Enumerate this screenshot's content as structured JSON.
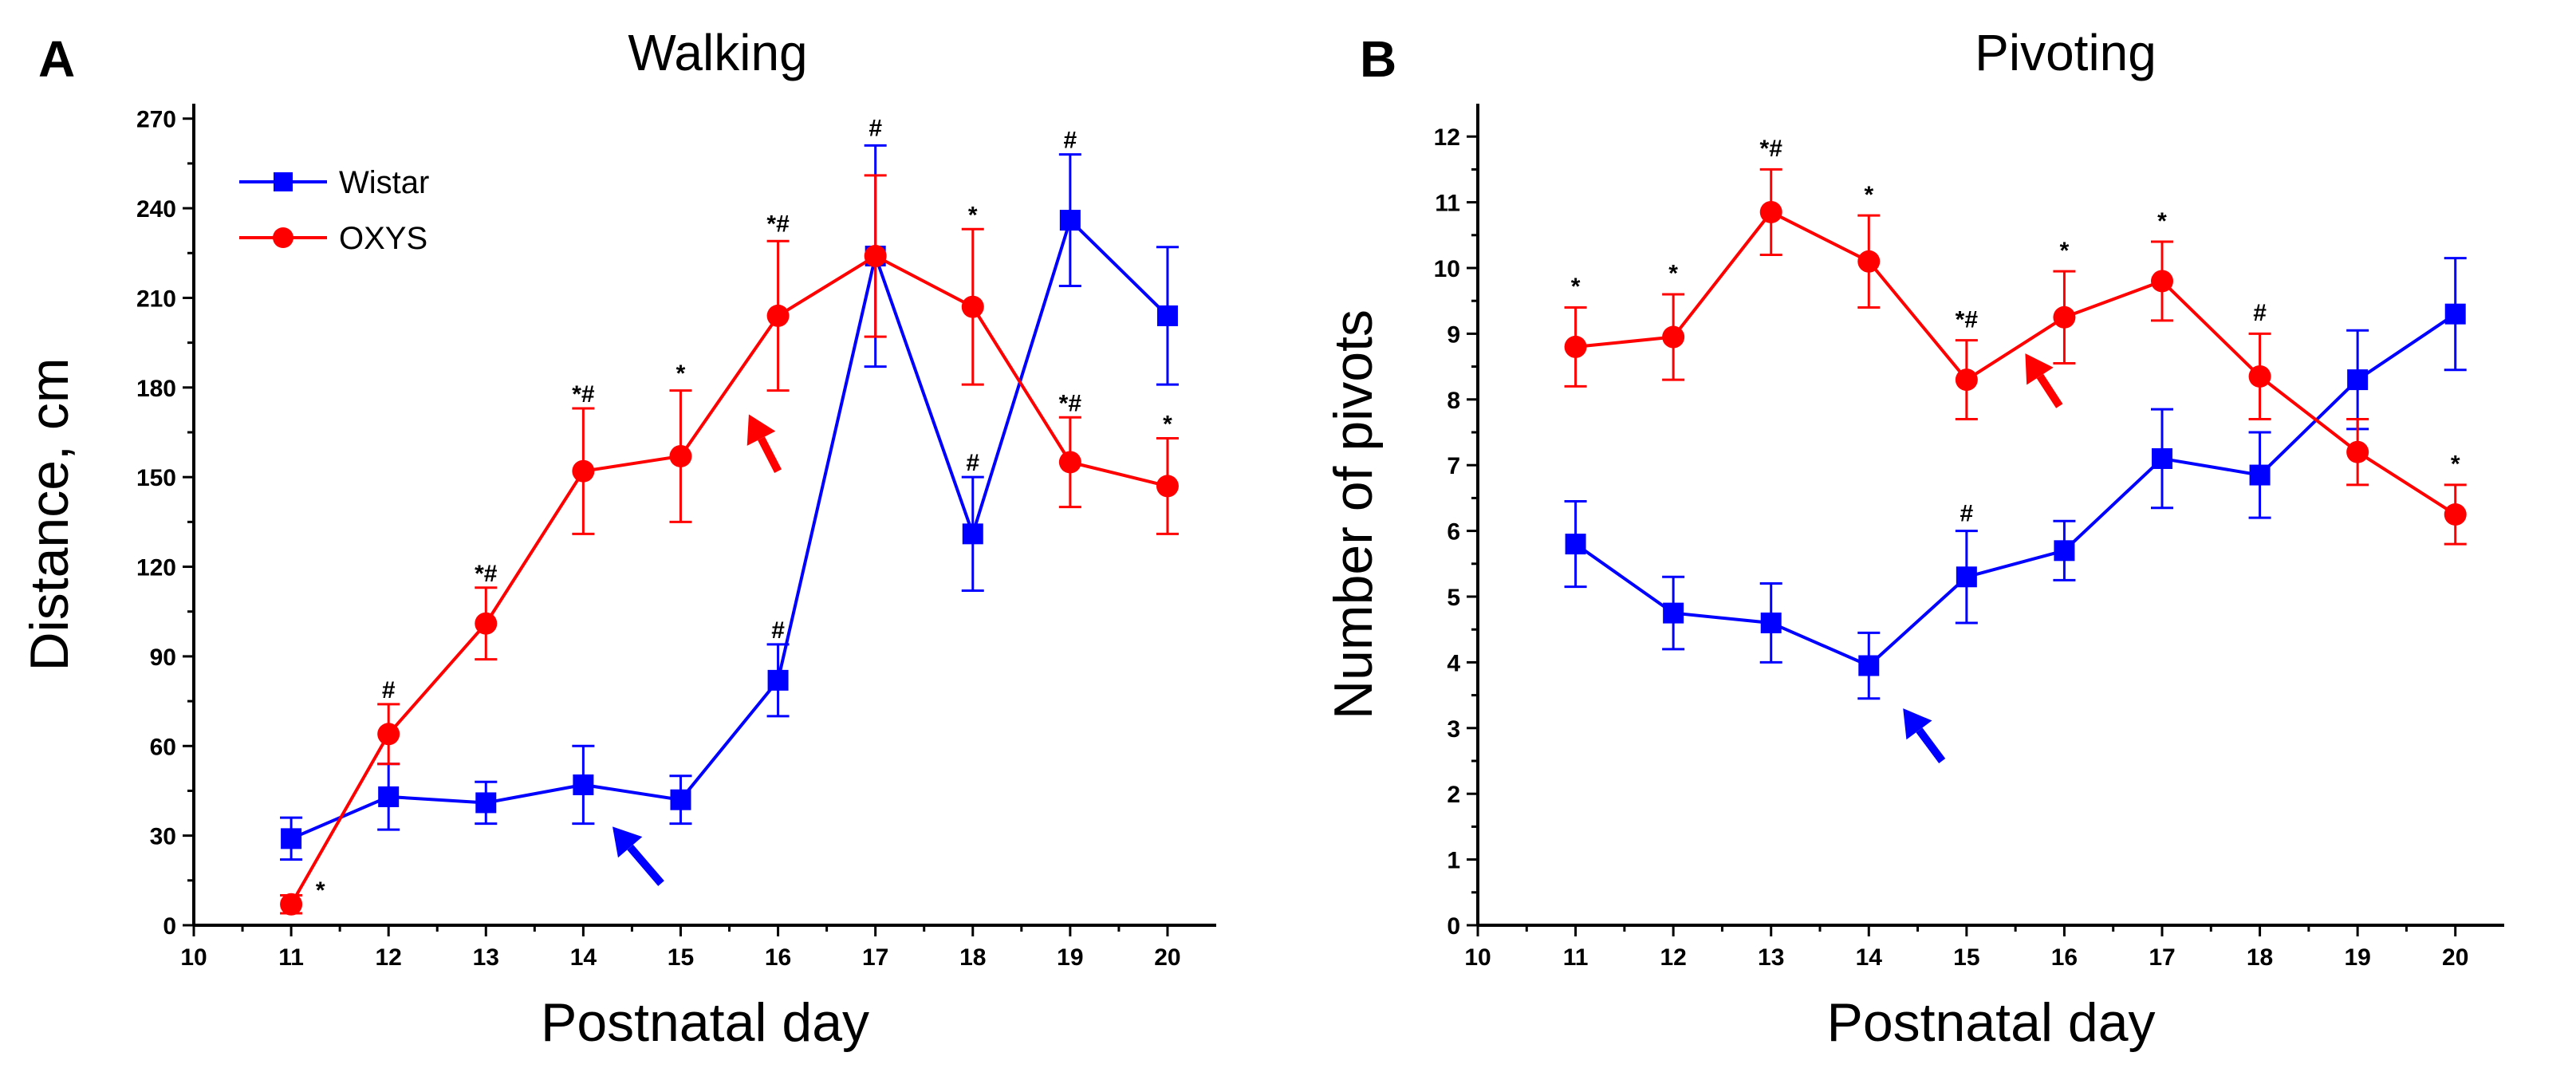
{
  "chart_data": [
    {
      "type": "line",
      "panel_letter": "A",
      "title": "Walking",
      "xlabel": "Postnatal day",
      "ylabel": "Distance, cm",
      "xlim": [
        10,
        20.5
      ],
      "ylim": [
        0,
        275
      ],
      "xticks": [
        10,
        11,
        12,
        13,
        14,
        15,
        16,
        17,
        18,
        19,
        20
      ],
      "yticks": [
        0,
        30,
        60,
        90,
        120,
        150,
        180,
        210,
        240,
        270
      ],
      "legend": {
        "position": "top-left",
        "entries": [
          "Wistar",
          "OXYS"
        ]
      },
      "series": [
        {
          "name": "Wistar",
          "color": "#0000ff",
          "marker": "square",
          "x": [
            11,
            12,
            13,
            14,
            15,
            16,
            17,
            18,
            19,
            20
          ],
          "y": [
            29,
            43,
            41,
            47,
            42,
            82,
            224,
            131,
            236,
            204
          ],
          "error": [
            7,
            11,
            7,
            13,
            8,
            12,
            37,
            19,
            22,
            23
          ]
        },
        {
          "name": "OXYS",
          "color": "#ff0000",
          "marker": "circle",
          "x": [
            11,
            12,
            13,
            14,
            15,
            16,
            17,
            18,
            19,
            20
          ],
          "y": [
            7,
            64,
            101,
            152,
            157,
            204,
            224,
            207,
            155,
            147
          ],
          "error": [
            3,
            10,
            12,
            21,
            22,
            25,
            27,
            26,
            15,
            16
          ]
        }
      ],
      "annotations": [
        {
          "x": 11.3,
          "y": 7,
          "text": "*",
          "dx": 0
        },
        {
          "x": 12,
          "y": 74,
          "text": "#"
        },
        {
          "x": 13,
          "y": 113,
          "text": "*#"
        },
        {
          "x": 14,
          "y": 173,
          "text": "*#"
        },
        {
          "x": 15,
          "y": 180,
          "text": "*"
        },
        {
          "x": 16,
          "y": 230,
          "text": "*#"
        },
        {
          "x": 17,
          "y": 262,
          "text": "#"
        },
        {
          "x": 18,
          "y": 233,
          "text": "*"
        },
        {
          "x": 18,
          "y": 150,
          "text": "#"
        },
        {
          "x": 16,
          "y": 94,
          "text": "#"
        },
        {
          "x": 19,
          "y": 258,
          "text": "#"
        },
        {
          "x": 19,
          "y": 170,
          "text": "*#"
        },
        {
          "x": 20,
          "y": 163,
          "text": "*"
        }
      ],
      "arrows": [
        {
          "color": "#0000ff",
          "from": [
            14.8,
            14
          ],
          "to": [
            14.3,
            33
          ]
        },
        {
          "color": "#ff0000",
          "from": [
            16.0,
            152
          ],
          "to": [
            15.7,
            171
          ]
        }
      ]
    },
    {
      "type": "line",
      "panel_letter": "B",
      "title": "Pivoting",
      "xlabel": "Postnatal day",
      "ylabel": "Number of pivots",
      "xlim": [
        10,
        20.5
      ],
      "ylim": [
        0,
        12.5
      ],
      "xticks": [
        10,
        11,
        12,
        13,
        14,
        15,
        16,
        17,
        18,
        19,
        20
      ],
      "yticks": [
        0,
        1,
        2,
        3,
        4,
        5,
        6,
        7,
        8,
        9,
        10,
        11,
        12
      ],
      "series": [
        {
          "name": "Wistar",
          "color": "#0000ff",
          "marker": "square",
          "x": [
            11,
            12,
            13,
            14,
            15,
            16,
            17,
            18,
            19,
            20
          ],
          "y": [
            5.8,
            4.75,
            4.6,
            3.95,
            5.3,
            5.7,
            7.1,
            6.85,
            8.3,
            9.3
          ],
          "error": [
            0.65,
            0.55,
            0.6,
            0.5,
            0.7,
            0.45,
            0.75,
            0.65,
            0.75,
            0.85
          ]
        },
        {
          "name": "OXYS",
          "color": "#ff0000",
          "marker": "circle",
          "x": [
            11,
            12,
            13,
            14,
            15,
            16,
            17,
            18,
            19,
            20
          ],
          "y": [
            8.8,
            8.95,
            10.85,
            10.1,
            8.3,
            9.25,
            9.8,
            8.35,
            7.2,
            6.25
          ],
          "error": [
            0.6,
            0.65,
            0.65,
            0.7,
            0.6,
            0.7,
            0.6,
            0.65,
            0.5,
            0.45
          ]
        }
      ],
      "annotations": [
        {
          "x": 11,
          "y": 9.5,
          "text": "*"
        },
        {
          "x": 12,
          "y": 9.7,
          "text": "*"
        },
        {
          "x": 13,
          "y": 11.6,
          "text": "*#"
        },
        {
          "x": 14,
          "y": 10.9,
          "text": "*"
        },
        {
          "x": 15,
          "y": 9.0,
          "text": "*#"
        },
        {
          "x": 16,
          "y": 10.05,
          "text": "*"
        },
        {
          "x": 17,
          "y": 10.5,
          "text": "*"
        },
        {
          "x": 18,
          "y": 9.1,
          "text": "#"
        },
        {
          "x": 15,
          "y": 6.05,
          "text": "#"
        },
        {
          "x": 20,
          "y": 6.8,
          "text": "*"
        }
      ],
      "arrows": [
        {
          "color": "#0000ff",
          "from": [
            14.75,
            2.5
          ],
          "to": [
            14.35,
            3.3
          ]
        },
        {
          "color": "#ff0000",
          "from": [
            15.95,
            7.9
          ],
          "to": [
            15.6,
            8.7
          ]
        }
      ]
    }
  ]
}
